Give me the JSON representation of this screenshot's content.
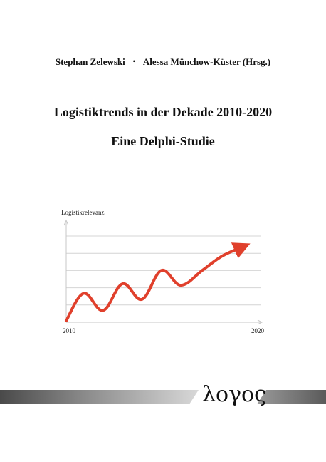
{
  "authors": {
    "author1": "Stephan Zelewski",
    "separator": "•",
    "author2": "Alessa Münchow-Küster (Hrsg.)"
  },
  "title": "Logistiktrends in der Dekade 2010-2020",
  "subtitle": "Eine Delphi-Studie",
  "chart_data": {
    "type": "line",
    "ylabel": "Logistikrelevanz",
    "xlabel": "",
    "xlim": [
      2010,
      2020
    ],
    "x_tick_labels": [
      "2010",
      "2020"
    ],
    "grid": true,
    "series": [
      {
        "color": "#e0402c",
        "arrow": true,
        "x": [
          2010,
          2010.9,
          2011.9,
          2012.9,
          2013.9,
          2014.9,
          2015.9,
          2017,
          2018,
          2019.1
        ],
        "y": [
          0,
          0.37,
          0.14,
          0.5,
          0.29,
          0.68,
          0.48,
          0.68,
          0.87,
          1
        ]
      }
    ]
  },
  "publisher_logo": "λογος"
}
